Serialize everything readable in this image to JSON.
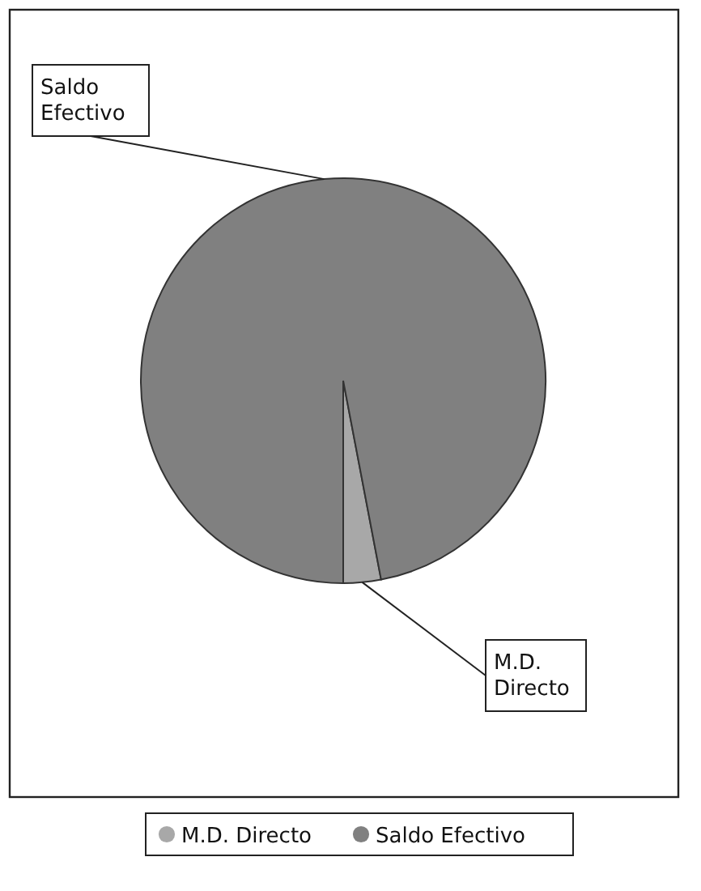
{
  "chart_data": {
    "type": "pie",
    "categories": [
      "M.D. Directo",
      "Saldo Efectivo"
    ],
    "values": [
      3,
      97
    ],
    "colors": [
      "#a8a8a8",
      "#808080"
    ],
    "legend": "bottom"
  }
}
